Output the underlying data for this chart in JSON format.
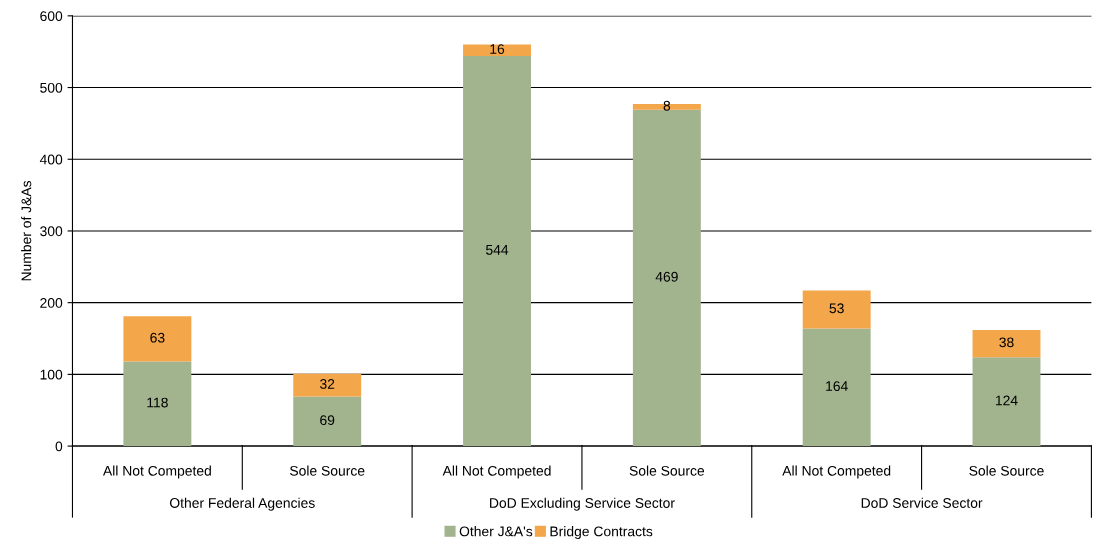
{
  "chart_data": {
    "type": "bar",
    "stacked": true,
    "ylabel": "Number of J&As",
    "categories": [
      "All Not Competed",
      "Sole Source",
      "All Not Competed",
      "Sole Source",
      "All Not Competed",
      "Sole Source"
    ],
    "series": [
      {
        "name": "Other J&A's",
        "color": "#a2b48e",
        "values": [
          118,
          69,
          544,
          469,
          164,
          124
        ]
      },
      {
        "name": "Bridge Contracts",
        "color": "#f3a64a",
        "values": [
          63,
          32,
          16,
          8,
          53,
          38
        ]
      }
    ],
    "annotations": [
      "Other Federal Agencies",
      "DoD Excluding Service Sector",
      "DoD Service Sector"
    ],
    "ylim": [
      0,
      600
    ],
    "yticks": [
      0,
      100,
      200,
      300,
      400,
      500,
      600
    ],
    "grid": "y",
    "legend": "bottom",
    "data_labels": true
  }
}
